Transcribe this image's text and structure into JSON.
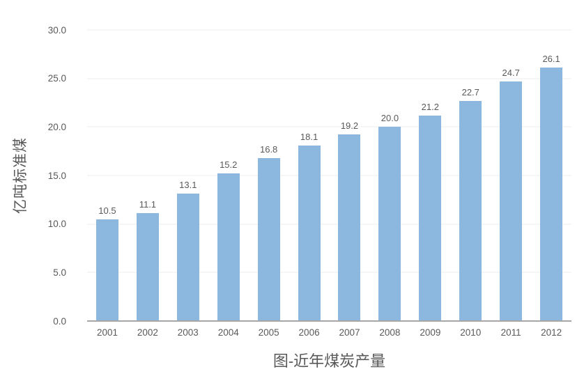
{
  "chart_data": {
    "type": "bar",
    "title": "图-近年煤炭产量",
    "ylabel": "亿吨标准煤",
    "xlabel": "",
    "categories": [
      "2001",
      "2002",
      "2003",
      "2004",
      "2005",
      "2006",
      "2007",
      "2008",
      "2009",
      "2010",
      "2011",
      "2012"
    ],
    "values": [
      10.5,
      11.1,
      13.1,
      15.2,
      16.8,
      18.1,
      19.2,
      20.0,
      21.2,
      22.7,
      24.7,
      26.1
    ],
    "ylim": [
      0,
      30
    ],
    "yticks": [
      0,
      5,
      10,
      15,
      20,
      25,
      30
    ],
    "ytick_decimals": 1,
    "grid": true,
    "legend_position": "none",
    "bar_color": "#8CB8DF",
    "text_color": "#595959",
    "gridline_color": "#ECECEC",
    "axis_line_color": "#A6A6A6"
  }
}
